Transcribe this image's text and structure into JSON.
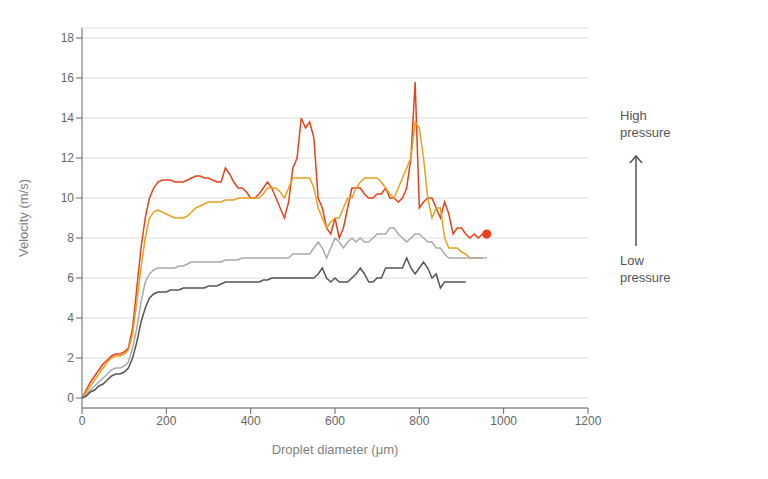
{
  "chart_data": {
    "type": "line",
    "xlabel": "Droplet diameter (μm)",
    "ylabel": "Velocity (m/s)",
    "xlim": [
      0,
      1200
    ],
    "ylim": [
      -0.5,
      18.5
    ],
    "xticks": [
      0,
      200,
      400,
      600,
      800,
      1000,
      1200
    ],
    "yticks": [
      0,
      2,
      4,
      6,
      8,
      10,
      12,
      14,
      16,
      18
    ],
    "grid": true,
    "annotations": [
      "High\npressure",
      "Low\npressure"
    ],
    "series": [
      {
        "color": "#e8401a",
        "x": [
          0,
          10,
          20,
          30,
          40,
          50,
          60,
          70,
          80,
          90,
          100,
          110,
          120,
          130,
          140,
          150,
          160,
          170,
          180,
          190,
          200,
          210,
          220,
          230,
          240,
          250,
          260,
          270,
          280,
          290,
          300,
          310,
          320,
          330,
          340,
          350,
          360,
          370,
          380,
          390,
          400,
          410,
          420,
          430,
          440,
          450,
          460,
          470,
          480,
          490,
          500,
          510,
          520,
          530,
          540,
          550,
          560,
          570,
          580,
          590,
          600,
          610,
          620,
          630,
          640,
          650,
          660,
          670,
          680,
          690,
          700,
          710,
          720,
          730,
          740,
          750,
          760,
          770,
          780,
          790,
          800,
          810,
          820,
          830,
          840,
          850,
          860,
          870,
          880,
          890,
          900,
          910,
          920,
          930,
          940,
          950,
          960
        ],
        "values": [
          0,
          0.4,
          0.8,
          1.1,
          1.4,
          1.7,
          1.9,
          2.1,
          2.2,
          2.2,
          2.3,
          2.5,
          3.5,
          5.5,
          7.5,
          9.0,
          10.0,
          10.5,
          10.8,
          10.9,
          10.9,
          10.9,
          10.8,
          10.8,
          10.8,
          10.9,
          11.0,
          11.1,
          11.1,
          11.0,
          11.0,
          10.9,
          10.8,
          10.8,
          11.5,
          11.2,
          10.8,
          10.5,
          10.5,
          10.3,
          10.0,
          10.0,
          10.2,
          10.5,
          10.8,
          10.5,
          10.0,
          9.5,
          9.0,
          9.8,
          11.5,
          12.0,
          14.0,
          13.5,
          13.8,
          13.0,
          10.0,
          9.5,
          8.5,
          8.2,
          9.0,
          8.0,
          8.5,
          9.5,
          10.5,
          10.5,
          10.5,
          10.2,
          10.0,
          10.0,
          10.2,
          10.2,
          10.5,
          10.0,
          10.0,
          9.8,
          10.0,
          10.5,
          12.0,
          15.8,
          9.5,
          9.8,
          10.0,
          10.0,
          9.5,
          9.0,
          9.8,
          9.2,
          8.2,
          8.5,
          8.5,
          8.2,
          8.0,
          8.2,
          8.0,
          8.2,
          8.0
        ]
      },
      {
        "color": "#e8a020",
        "x": [
          0,
          10,
          20,
          30,
          40,
          50,
          60,
          70,
          80,
          90,
          100,
          110,
          120,
          130,
          140,
          150,
          160,
          170,
          180,
          190,
          200,
          210,
          220,
          230,
          240,
          250,
          260,
          270,
          280,
          290,
          300,
          310,
          320,
          330,
          340,
          350,
          360,
          370,
          380,
          390,
          400,
          410,
          420,
          430,
          440,
          450,
          460,
          470,
          480,
          490,
          500,
          510,
          520,
          530,
          540,
          550,
          560,
          570,
          580,
          590,
          600,
          610,
          620,
          630,
          640,
          650,
          660,
          670,
          680,
          690,
          700,
          710,
          720,
          730,
          740,
          750,
          760,
          770,
          780,
          790,
          800,
          810,
          820,
          830,
          840,
          850,
          860,
          870,
          880,
          890,
          900,
          910,
          920,
          930,
          940,
          950
        ],
        "values": [
          0,
          0.3,
          0.6,
          0.9,
          1.2,
          1.5,
          1.8,
          2.0,
          2.1,
          2.1,
          2.2,
          2.4,
          3.2,
          4.8,
          6.5,
          8.0,
          9.0,
          9.3,
          9.4,
          9.3,
          9.2,
          9.1,
          9.0,
          9.0,
          9.0,
          9.1,
          9.3,
          9.5,
          9.6,
          9.7,
          9.8,
          9.8,
          9.8,
          9.8,
          9.9,
          9.9,
          9.9,
          10.0,
          10.0,
          10.0,
          10.0,
          10.0,
          10.0,
          10.2,
          10.5,
          10.5,
          10.5,
          10.3,
          10.0,
          10.5,
          11.0,
          11.0,
          11.0,
          11.0,
          11.0,
          10.5,
          9.5,
          9.0,
          8.5,
          8.8,
          9.0,
          9.0,
          9.5,
          10.0,
          10.0,
          10.5,
          10.8,
          11.0,
          11.0,
          11.0,
          11.0,
          10.8,
          10.5,
          10.2,
          10.0,
          10.5,
          11.0,
          11.5,
          12.0,
          13.8,
          13.5,
          12.0,
          10.0,
          9.0,
          9.5,
          9.5,
          8.0,
          7.5,
          7.5,
          7.5,
          7.3,
          7.2,
          7.0,
          7.0,
          7.0,
          7.0
        ]
      },
      {
        "color": "#aaaaaa",
        "x": [
          0,
          10,
          20,
          30,
          40,
          50,
          60,
          70,
          80,
          90,
          100,
          110,
          120,
          130,
          140,
          150,
          160,
          170,
          180,
          190,
          200,
          210,
          220,
          230,
          240,
          250,
          260,
          270,
          280,
          290,
          300,
          310,
          320,
          330,
          340,
          350,
          360,
          370,
          380,
          390,
          400,
          410,
          420,
          430,
          440,
          450,
          460,
          470,
          480,
          490,
          500,
          510,
          520,
          530,
          540,
          550,
          560,
          570,
          580,
          590,
          600,
          610,
          620,
          630,
          640,
          650,
          660,
          670,
          680,
          690,
          700,
          710,
          720,
          730,
          740,
          750,
          760,
          770,
          780,
          790,
          800,
          810,
          820,
          830,
          840,
          850,
          860,
          870,
          880,
          890,
          900,
          910,
          920,
          930,
          940,
          950,
          960
        ],
        "values": [
          0,
          0.2,
          0.4,
          0.6,
          0.8,
          1.0,
          1.2,
          1.4,
          1.5,
          1.5,
          1.6,
          1.8,
          2.5,
          3.5,
          4.8,
          5.8,
          6.2,
          6.4,
          6.5,
          6.5,
          6.5,
          6.5,
          6.5,
          6.6,
          6.6,
          6.7,
          6.8,
          6.8,
          6.8,
          6.8,
          6.8,
          6.8,
          6.8,
          6.8,
          6.9,
          6.9,
          6.9,
          6.9,
          7.0,
          7.0,
          7.0,
          7.0,
          7.0,
          7.0,
          7.0,
          7.0,
          7.0,
          7.0,
          7.0,
          7.0,
          7.2,
          7.2,
          7.2,
          7.2,
          7.2,
          7.5,
          7.8,
          7.5,
          7.0,
          7.5,
          8.0,
          7.8,
          7.5,
          7.8,
          8.0,
          7.8,
          8.0,
          7.8,
          7.8,
          8.0,
          8.2,
          8.2,
          8.2,
          8.5,
          8.5,
          8.2,
          8.0,
          7.8,
          8.0,
          8.2,
          8.2,
          8.0,
          7.8,
          7.8,
          7.5,
          7.5,
          7.2,
          7.0,
          7.0,
          7.0,
          7.0,
          7.0,
          7.0,
          7.0,
          7.0,
          7.0,
          7.0
        ]
      },
      {
        "color": "#555555",
        "x": [
          0,
          10,
          20,
          30,
          40,
          50,
          60,
          70,
          80,
          90,
          100,
          110,
          120,
          130,
          140,
          150,
          160,
          170,
          180,
          190,
          200,
          210,
          220,
          230,
          240,
          250,
          260,
          270,
          280,
          290,
          300,
          310,
          320,
          330,
          340,
          350,
          360,
          370,
          380,
          390,
          400,
          410,
          420,
          430,
          440,
          450,
          460,
          470,
          480,
          490,
          500,
          510,
          520,
          530,
          540,
          550,
          560,
          570,
          580,
          590,
          600,
          610,
          620,
          630,
          640,
          650,
          660,
          670,
          680,
          690,
          700,
          710,
          720,
          730,
          740,
          750,
          760,
          770,
          780,
          790,
          800,
          810,
          820,
          830,
          840,
          850,
          860,
          870,
          880,
          890,
          900,
          910
        ],
        "values": [
          0,
          0.1,
          0.3,
          0.4,
          0.6,
          0.7,
          0.9,
          1.1,
          1.2,
          1.2,
          1.3,
          1.5,
          2.0,
          2.8,
          3.8,
          4.5,
          5.0,
          5.2,
          5.3,
          5.3,
          5.3,
          5.4,
          5.4,
          5.4,
          5.5,
          5.5,
          5.5,
          5.5,
          5.5,
          5.5,
          5.6,
          5.6,
          5.6,
          5.7,
          5.8,
          5.8,
          5.8,
          5.8,
          5.8,
          5.8,
          5.8,
          5.8,
          5.8,
          5.9,
          5.9,
          6.0,
          6.0,
          6.0,
          6.0,
          6.0,
          6.0,
          6.0,
          6.0,
          6.0,
          6.0,
          6.0,
          6.2,
          6.5,
          6.0,
          5.8,
          6.0,
          5.8,
          5.8,
          5.8,
          6.0,
          6.2,
          6.5,
          6.2,
          5.8,
          5.8,
          6.0,
          6.0,
          6.5,
          6.5,
          6.5,
          6.5,
          6.5,
          7.0,
          6.5,
          6.2,
          6.5,
          6.8,
          6.5,
          6.0,
          6.2,
          5.5,
          5.8,
          5.8,
          5.8,
          5.8,
          5.8,
          5.8
        ]
      },
      {
        "type": "scatter",
        "color": "#e8401a",
        "x": [
          960
        ],
        "values": [
          8.2
        ]
      }
    ]
  }
}
